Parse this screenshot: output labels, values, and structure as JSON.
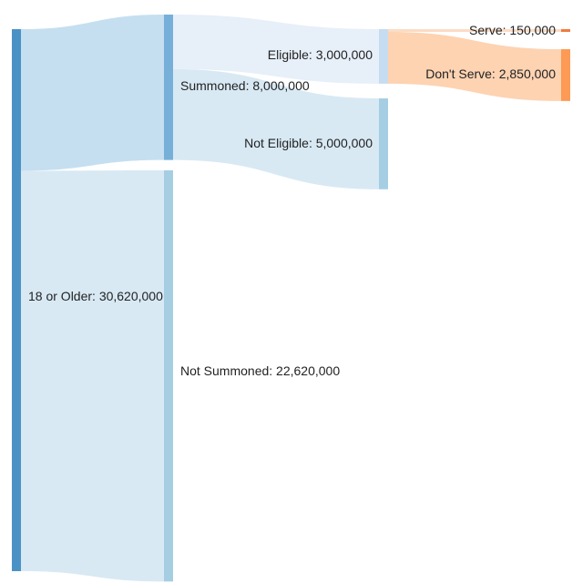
{
  "chart_data": {
    "type": "sankey",
    "nodes": [
      {
        "id": "adults",
        "label": "18 or Older: 30,620,000",
        "value": 30620000,
        "color": "#4a92c6",
        "column": 0
      },
      {
        "id": "summoned",
        "label": "Summoned: 8,000,000",
        "value": 8000000,
        "color": "#76b0d8",
        "column": 1
      },
      {
        "id": "not_summoned",
        "label": "Not Summoned: 22,620,000",
        "value": 22620000,
        "color": "#a6cee3",
        "column": 1
      },
      {
        "id": "eligible",
        "label": "Eligible: 3,000,000",
        "value": 3000000,
        "color": "#c6dcf0",
        "column": 2
      },
      {
        "id": "not_eligible",
        "label": "Not Eligible: 5,000,000",
        "value": 5000000,
        "color": "#a6cee3",
        "column": 2
      },
      {
        "id": "serve",
        "label": "Serve: 150,000",
        "value": 150000,
        "color": "#f07b3f",
        "column": 3
      },
      {
        "id": "dont_serve",
        "label": "Don't Serve: 2,850,000",
        "value": 2850000,
        "color": "#fd9a55",
        "column": 3
      }
    ],
    "links": [
      {
        "source": "adults",
        "target": "summoned",
        "value": 8000000,
        "color": "#c5dff0"
      },
      {
        "source": "adults",
        "target": "not_summoned",
        "value": 22620000,
        "color": "#d8e9f4"
      },
      {
        "source": "summoned",
        "target": "eligible",
        "value": 3000000,
        "color": "#e7eff9"
      },
      {
        "source": "summoned",
        "target": "not_eligible",
        "value": 5000000,
        "color": "#d8e9f4"
      },
      {
        "source": "eligible",
        "target": "serve",
        "value": 150000,
        "color": "#fbdcc5"
      },
      {
        "source": "eligible",
        "target": "dont_serve",
        "value": 2850000,
        "color": "#fdd3b2"
      }
    ]
  }
}
